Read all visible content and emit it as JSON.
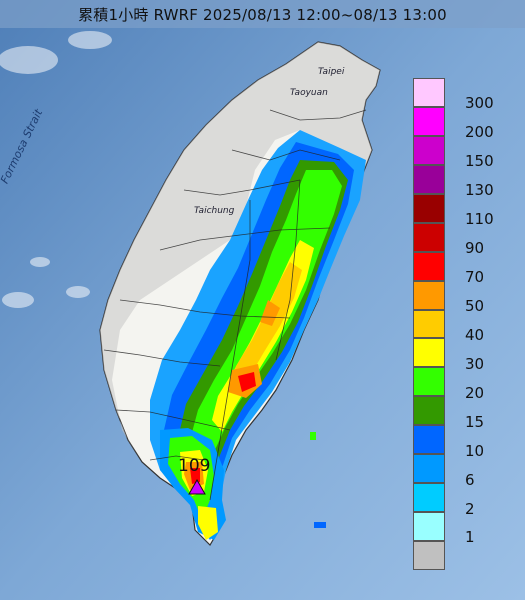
{
  "title": "累積1小時 RWRF 2025/08/13 12:00~08/13 13:00",
  "places": {
    "taipei": "Taipei",
    "taoyuan": "Taoyuan",
    "taichung": "Taichung",
    "strait": "Formosa Strait"
  },
  "max_value": "109",
  "legend": [
    {
      "label": "300",
      "color": "#ffc8ff"
    },
    {
      "label": "200",
      "color": "#ff00ff"
    },
    {
      "label": "150",
      "color": "#cc00cc"
    },
    {
      "label": "130",
      "color": "#990099"
    },
    {
      "label": "110",
      "color": "#990000"
    },
    {
      "label": "90",
      "color": "#cc0000"
    },
    {
      "label": "70",
      "color": "#ff0000"
    },
    {
      "label": "50",
      "color": "#ff9900"
    },
    {
      "label": "40",
      "color": "#ffcc00"
    },
    {
      "label": "30",
      "color": "#ffff00"
    },
    {
      "label": "20",
      "color": "#33ff00"
    },
    {
      "label": "15",
      "color": "#339900"
    },
    {
      "label": "10",
      "color": "#0066ff"
    },
    {
      "label": "6",
      "color": "#0099ff"
    },
    {
      "label": "2",
      "color": "#00ccff"
    },
    {
      "label": "1",
      "color": "#99ffff"
    },
    {
      "label": "",
      "color": "#c0c0c0"
    }
  ]
}
